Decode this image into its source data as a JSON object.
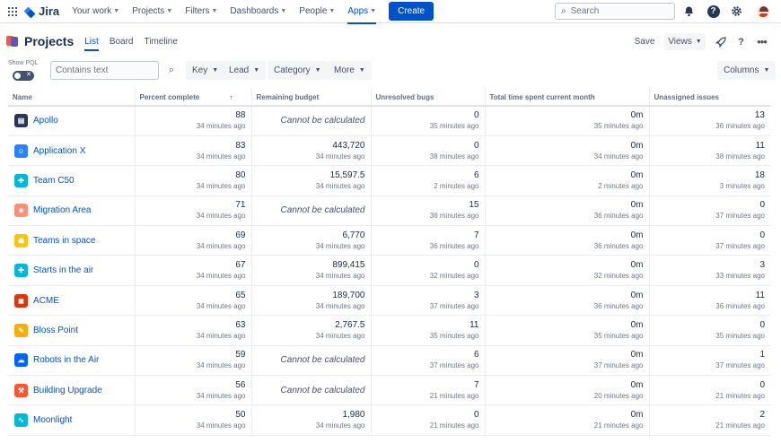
{
  "topnav": {
    "app_name": "Jira",
    "items": [
      {
        "label": "Your work"
      },
      {
        "label": "Projects"
      },
      {
        "label": "Filters"
      },
      {
        "label": "Dashboards"
      },
      {
        "label": "People"
      },
      {
        "label": "Apps"
      }
    ],
    "active_item": "Apps",
    "create_label": "Create",
    "search_placeholder": "Search"
  },
  "header": {
    "title": "Projects",
    "tabs": [
      {
        "label": "List",
        "active": true
      },
      {
        "label": "Board",
        "active": false
      },
      {
        "label": "Timeline",
        "active": false
      }
    ],
    "save_label": "Save",
    "views_label": "Views"
  },
  "filters": {
    "show_pql_label": "Show PQL",
    "search_placeholder": "Contains text",
    "chips": [
      "Key",
      "Lead",
      "Category",
      "More"
    ],
    "columns_label": "Columns"
  },
  "table": {
    "headers": [
      "Name",
      "Percent complete",
      "Remaining budget",
      "Unresolved bugs",
      "Total time spent current month",
      "Unassigned issues"
    ],
    "sorted_column": "Percent complete",
    "rows": [
      {
        "name": "Apollo",
        "icon": "book-icon",
        "color": "#253858",
        "percent": "88",
        "percent_ago": "34 minutes ago",
        "budget": "Cannot be calculated",
        "budget_ago": "",
        "bugs": "0",
        "bugs_ago": "35 minutes ago",
        "time": "0m",
        "time_ago": "35 minutes ago",
        "unassigned": "13",
        "unassigned_ago": "36 minutes ago"
      },
      {
        "name": "Application X",
        "icon": "face-icon",
        "color": "#2684ff",
        "percent": "83",
        "percent_ago": "34 minutes ago",
        "budget": "443,720",
        "budget_ago": "34 minutes ago",
        "bugs": "0",
        "bugs_ago": "38 minutes ago",
        "time": "0m",
        "time_ago": "34 minutes ago",
        "unassigned": "11",
        "unassigned_ago": "38 minutes ago"
      },
      {
        "name": "Team C50",
        "icon": "puzzle-icon",
        "color": "#00b8d9",
        "percent": "80",
        "percent_ago": "34 minutes ago",
        "budget": "15,597.5",
        "budget_ago": "34 minutes ago",
        "bugs": "6",
        "bugs_ago": "2 minutes ago",
        "time": "0m",
        "time_ago": "2 minutes ago",
        "unassigned": "18",
        "unassigned_ago": "3 minutes ago"
      },
      {
        "name": "Migration Area",
        "icon": "person-icon",
        "color": "#ff8f73",
        "percent": "71",
        "percent_ago": "34 minutes ago",
        "budget": "Cannot be calculated",
        "budget_ago": "",
        "bugs": "15",
        "bugs_ago": "36 minutes ago",
        "time": "0m",
        "time_ago": "36 minutes ago",
        "unassigned": "0",
        "unassigned_ago": "37 minutes ago"
      },
      {
        "name": "Teams in space",
        "icon": "robot-icon",
        "color": "#ffc400",
        "percent": "69",
        "percent_ago": "34 minutes ago",
        "budget": "6,770",
        "budget_ago": "34 minutes ago",
        "bugs": "7",
        "bugs_ago": "36 minutes ago",
        "time": "0m",
        "time_ago": "36 minutes ago",
        "unassigned": "0",
        "unassigned_ago": "37 minutes ago"
      },
      {
        "name": "Starts in the air",
        "icon": "puzzle-icon",
        "color": "#00b8d9",
        "percent": "67",
        "percent_ago": "34 minutes ago",
        "budget": "899,415",
        "budget_ago": "34 minutes ago",
        "bugs": "0",
        "bugs_ago": "32 minutes ago",
        "time": "0m",
        "time_ago": "32 minutes ago",
        "unassigned": "3",
        "unassigned_ago": "33 minutes ago"
      },
      {
        "name": "ACME",
        "icon": "camera-icon",
        "color": "#de350b",
        "percent": "65",
        "percent_ago": "34 minutes ago",
        "budget": "189,700",
        "budget_ago": "34 minutes ago",
        "bugs": "3",
        "bugs_ago": "37 minutes ago",
        "time": "0m",
        "time_ago": "36 minutes ago",
        "unassigned": "11",
        "unassigned_ago": "36 minutes ago"
      },
      {
        "name": "Bloss Point",
        "icon": "pencil-icon",
        "color": "#ffab00",
        "percent": "63",
        "percent_ago": "34 minutes ago",
        "budget": "2,767.5",
        "budget_ago": "34 minutes ago",
        "bugs": "11",
        "bugs_ago": "35 minutes ago",
        "time": "0m",
        "time_ago": "35 minutes ago",
        "unassigned": "0",
        "unassigned_ago": "35 minutes ago"
      },
      {
        "name": "Robots in the Air",
        "icon": "cloud-icon",
        "color": "#0065ff",
        "percent": "59",
        "percent_ago": "34 minutes ago",
        "budget": "Cannot be calculated",
        "budget_ago": "",
        "bugs": "6",
        "bugs_ago": "37 minutes ago",
        "time": "0m",
        "time_ago": "37 minutes ago",
        "unassigned": "1",
        "unassigned_ago": "37 minutes ago"
      },
      {
        "name": "Building Upgrade",
        "icon": "tool-icon",
        "color": "#ff5630",
        "percent": "56",
        "percent_ago": "34 minutes ago",
        "budget": "Cannot be calculated",
        "budget_ago": "",
        "bugs": "7",
        "bugs_ago": "21 minutes ago",
        "time": "0m",
        "time_ago": "20 minutes ago",
        "unassigned": "0",
        "unassigned_ago": "21 minutes ago"
      },
      {
        "name": "Moonlight",
        "icon": "graph-icon",
        "color": "#00b8d9",
        "percent": "50",
        "percent_ago": "34 minutes ago",
        "budget": "1,980",
        "budget_ago": "34 minutes ago",
        "bugs": "0",
        "bugs_ago": "21 minutes ago",
        "time": "0m",
        "time_ago": "21 minutes ago",
        "unassigned": "2",
        "unassigned_ago": "21 minutes ago"
      }
    ]
  }
}
